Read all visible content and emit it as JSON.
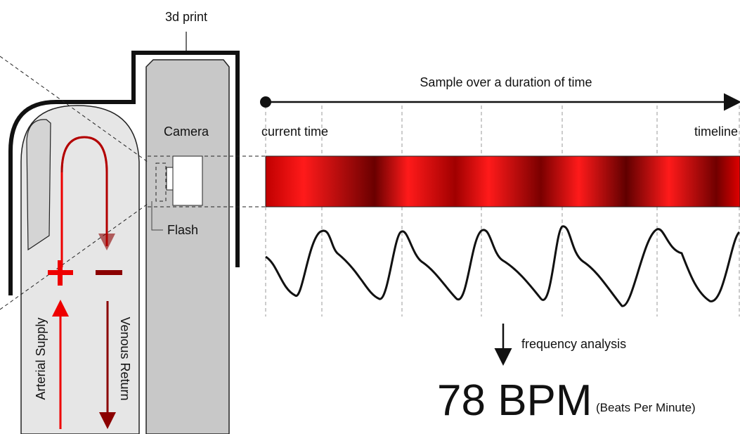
{
  "labels": {
    "print": "3d print",
    "sample": "Sample over a duration of time",
    "current": "current time",
    "timeline": "timeline",
    "camera": "Camera",
    "flash": "Flash",
    "arterial": "Arterial Supply",
    "venous": "Venous Return",
    "frequency": "frequency analysis",
    "bpm": "78 BPM",
    "bpm_note": "(Beats Per Minute)"
  }
}
